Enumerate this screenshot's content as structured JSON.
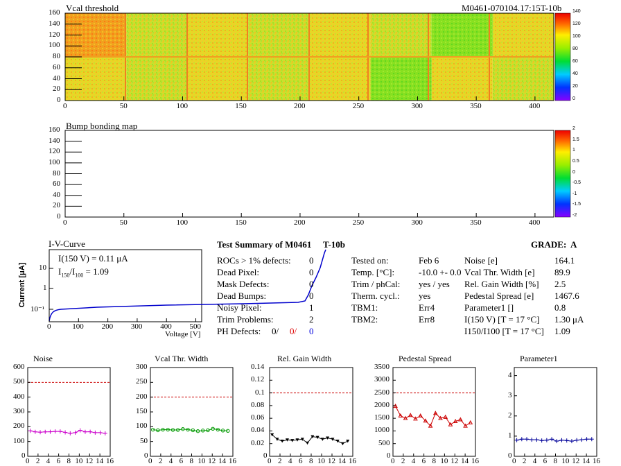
{
  "top_map": {
    "title": "Vcal threshold",
    "module_id": "M0461-070104.17:15T-10b",
    "x_ticks": [
      "0",
      "50",
      "100",
      "150",
      "200",
      "250",
      "300",
      "350",
      "400"
    ],
    "y_ticks": [
      "0",
      "20",
      "40",
      "60",
      "80",
      "100",
      "120",
      "140",
      "160"
    ],
    "z_ticks": [
      "0",
      "20",
      "40",
      "60",
      "80",
      "100",
      "120",
      "140"
    ]
  },
  "bump_map": {
    "title": "Bump bonding map",
    "x_ticks": [
      "0",
      "50",
      "100",
      "150",
      "200",
      "250",
      "300",
      "350",
      "400"
    ],
    "y_ticks": [
      "0",
      "20",
      "40",
      "60",
      "80",
      "100",
      "120",
      "140",
      "160"
    ],
    "z_ticks": [
      "-2",
      "-1.5",
      "-1",
      "-0.5",
      "0",
      "0.5",
      "1",
      "1.5",
      "2"
    ]
  },
  "iv": {
    "title": "I-V-Curve",
    "y_label": "Current [μA]",
    "x_label": "Voltage [V]",
    "annot1": "I(150 V) = 0.11 μA",
    "annot2": "I150/I100 = 1.09",
    "x_ticks": [
      "0",
      "100",
      "200",
      "300",
      "400",
      "500"
    ],
    "y_ticks": [
      "10⁻¹",
      "1",
      "10"
    ]
  },
  "summary": {
    "title": "Test Summary of M0461",
    "label": "T-10b",
    "grade": "GRADE:  A",
    "left": [
      {
        "k": "ROCs > 1% defects:",
        "v": "0"
      },
      {
        "k": "Dead Pixel:",
        "v": "0"
      },
      {
        "k": "Mask Defects:",
        "v": "0"
      },
      {
        "k": "Dead Bumps:",
        "v": "0"
      },
      {
        "k": "Noisy Pixel:",
        "v": "1"
      },
      {
        "k": "Trim Problems:",
        "v": "2"
      }
    ],
    "ph": {
      "k": "PH Defects:",
      "v1": "0/",
      "v2": "0/",
      "v3": "0"
    },
    "mid": [
      {
        "k": "Tested on:",
        "v": "Feb 6"
      },
      {
        "k": "Temp. [°C]:",
        "v": "-10.0 +- 0.0"
      },
      {
        "k": "Trim / phCal:",
        "v": "yes / yes"
      },
      {
        "k": "Therm. cycl.:",
        "v": "yes"
      },
      {
        "k": "TBM1:",
        "v": "Err4"
      },
      {
        "k": "TBM2:",
        "v": "Err8"
      }
    ],
    "right": [
      {
        "k": "Noise [e]",
        "v": "164.1"
      },
      {
        "k": "Vcal Thr. Width [e]",
        "v": "89.9"
      },
      {
        "k": "Rel. Gain Width [%]",
        "v": "2.5"
      },
      {
        "k": "Pedestal Spread [e]",
        "v": "1467.6"
      },
      {
        "k": "Parameter1 []",
        "v": "0.8"
      },
      {
        "k": "I(150 V)  [T = 17 °C]",
        "v": "1.30 μA"
      },
      {
        "k": "I150/I100  [T = 17 °C]",
        "v": "1.09"
      }
    ]
  },
  "chart_data": [
    {
      "type": "line",
      "title": "Noise",
      "color": "#cc00cc",
      "marker": "cross",
      "x": [
        0,
        1,
        2,
        3,
        4,
        5,
        6,
        7,
        8,
        9,
        10,
        11,
        12,
        13,
        14,
        15
      ],
      "values": [
        172,
        165,
        163,
        165,
        166,
        168,
        168,
        162,
        155,
        160,
        175,
        165,
        166,
        160,
        160,
        155
      ],
      "ylim": [
        0,
        600
      ],
      "limit": 500,
      "y_ticks": [
        "0",
        "100",
        "200",
        "300",
        "400",
        "500",
        "600"
      ],
      "x_ticks": [
        "0",
        "2",
        "4",
        "6",
        "8",
        "10",
        "12",
        "14",
        "16"
      ]
    },
    {
      "type": "line",
      "title": "Vcal Thr. Width",
      "color": "#009900",
      "marker": "circle",
      "x": [
        0,
        1,
        2,
        3,
        4,
        5,
        6,
        7,
        8,
        9,
        10,
        11,
        12,
        13,
        14,
        15
      ],
      "values": [
        90,
        88,
        90,
        90,
        89,
        89,
        92,
        90,
        88,
        85,
        87,
        88,
        93,
        90,
        87,
        86
      ],
      "ylim": [
        0,
        300
      ],
      "limit": 200,
      "y_ticks": [
        "0",
        "50",
        "100",
        "150",
        "200",
        "250",
        "300"
      ],
      "x_ticks": [
        "0",
        "2",
        "4",
        "6",
        "8",
        "10",
        "12",
        "14",
        "16"
      ]
    },
    {
      "type": "line",
      "title": "Rel. Gain Width",
      "color": "#000000",
      "marker": "triangle-down",
      "x": [
        0,
        1,
        2,
        3,
        4,
        5,
        6,
        7,
        8,
        9,
        10,
        11,
        12,
        13,
        14,
        15
      ],
      "values": [
        0.034,
        0.027,
        0.024,
        0.026,
        0.025,
        0.026,
        0.027,
        0.021,
        0.031,
        0.03,
        0.027,
        0.029,
        0.027,
        0.024,
        0.02,
        0.024
      ],
      "ylim": [
        0,
        0.14
      ],
      "limit": 0.1,
      "y_ticks": [
        "0",
        "0.02",
        "0.04",
        "0.06",
        "0.08",
        "0.1",
        "0.12",
        "0.14"
      ],
      "x_ticks": [
        "0",
        "2",
        "4",
        "6",
        "8",
        "10",
        "12",
        "14",
        "16"
      ]
    },
    {
      "type": "line",
      "title": "Pedestal Spread",
      "color": "#cc0000",
      "marker": "triangle-up",
      "x": [
        0,
        1,
        2,
        3,
        4,
        5,
        6,
        7,
        8,
        9,
        10,
        11,
        12,
        13,
        14,
        15
      ],
      "values": [
        1980,
        1600,
        1500,
        1620,
        1480,
        1600,
        1400,
        1200,
        1700,
        1500,
        1550,
        1250,
        1380,
        1450,
        1200,
        1330
      ],
      "ylim": [
        0,
        3500
      ],
      "limit": 2500,
      "y_ticks": [
        "0",
        "500",
        "1000",
        "1500",
        "2000",
        "2500",
        "3000",
        "3500"
      ],
      "x_ticks": [
        "0",
        "2",
        "4",
        "6",
        "8",
        "10",
        "12",
        "14",
        "16"
      ]
    },
    {
      "type": "line",
      "title": "Parameter1",
      "color": "#000099",
      "marker": "cross",
      "x": [
        0,
        1,
        2,
        3,
        4,
        5,
        6,
        7,
        8,
        9,
        10,
        11,
        12,
        13,
        14,
        15
      ],
      "values": [
        0.8,
        0.85,
        0.85,
        0.82,
        0.82,
        0.78,
        0.8,
        0.85,
        0.75,
        0.8,
        0.78,
        0.75,
        0.8,
        0.82,
        0.85,
        0.85
      ],
      "ylim": [
        0,
        4.4
      ],
      "limit": null,
      "y_ticks": [
        "0",
        "1",
        "2",
        "3",
        "4"
      ],
      "x_ticks": [
        "0",
        "2",
        "4",
        "6",
        "8",
        "10",
        "12",
        "14",
        "16"
      ]
    }
  ]
}
